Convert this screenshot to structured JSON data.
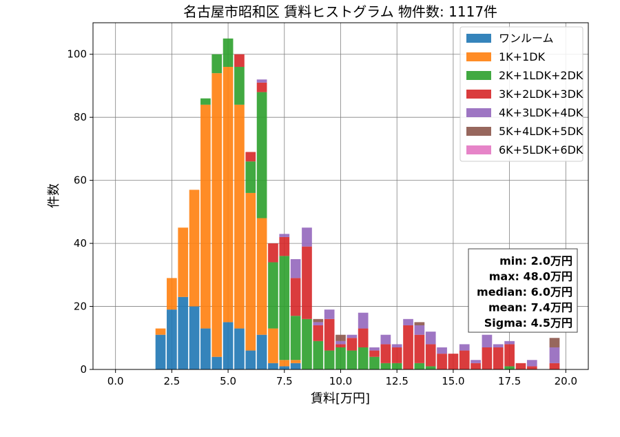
{
  "chart_data": {
    "type": "bar",
    "stacked": true,
    "title": "名古屋市昭和区 賃料ヒストグラム 物件数: 1117件",
    "xlabel": "賃料[万円]",
    "ylabel": "件数",
    "xlim": [
      -1.0,
      21.0
    ],
    "ylim": [
      0,
      110
    ],
    "bin_width": 0.5,
    "grid": true,
    "legend_position": "top-right",
    "x_ticks": [
      "0.0",
      "2.5",
      "5.0",
      "7.5",
      "10.0",
      "12.5",
      "15.0",
      "17.5",
      "20.0"
    ],
    "y_ticks": [
      "0",
      "20",
      "40",
      "60",
      "80",
      "100"
    ],
    "x": [
      2.0,
      2.5,
      3.0,
      3.5,
      4.0,
      4.5,
      5.0,
      5.5,
      6.0,
      6.5,
      7.0,
      7.5,
      8.0,
      8.5,
      9.0,
      9.5,
      10.0,
      10.5,
      11.0,
      11.5,
      12.0,
      12.5,
      13.0,
      13.5,
      14.0,
      14.5,
      15.0,
      15.5,
      16.0,
      16.5,
      17.0,
      17.5,
      18.0,
      18.5,
      19.0,
      19.5
    ],
    "series": [
      {
        "name": "ワンルーム",
        "color": "#1f77b4",
        "values": [
          11,
          19,
          23,
          20,
          13,
          4,
          15,
          13,
          6,
          11,
          2,
          1,
          2,
          0,
          0,
          0,
          0,
          0,
          0,
          0,
          0,
          0,
          0,
          0,
          0,
          0,
          0,
          0,
          0,
          0,
          0,
          0,
          0,
          0,
          0,
          0
        ]
      },
      {
        "name": "1K+1DK",
        "color": "#ff7f0e",
        "values": [
          2,
          10,
          22,
          37,
          71,
          90,
          81,
          71,
          50,
          37,
          11,
          2,
          1,
          0,
          0,
          0,
          0,
          0,
          0,
          0,
          0,
          0,
          0,
          0,
          0,
          0,
          0,
          0,
          0,
          0,
          0,
          0,
          0,
          0,
          0,
          0
        ]
      },
      {
        "name": "2K+1LDK+2DK",
        "color": "#2ca02c",
        "values": [
          0,
          0,
          0,
          0,
          2,
          6,
          9,
          12,
          10,
          40,
          21,
          33,
          14,
          16,
          9,
          6,
          7,
          6,
          7,
          4,
          2,
          2,
          0,
          2,
          1,
          0,
          0,
          0,
          0,
          0,
          0,
          1,
          0,
          0,
          0,
          0
        ]
      },
      {
        "name": "3K+2LDK+3DK",
        "color": "#d62728",
        "values": [
          0,
          0,
          0,
          0,
          0,
          0,
          0,
          4,
          3,
          3,
          6,
          6,
          12,
          23,
          5,
          10,
          1,
          4,
          6,
          2,
          6,
          5,
          14,
          9,
          7,
          5,
          5,
          6,
          2,
          7,
          7,
          7,
          2,
          1,
          0,
          2
        ]
      },
      {
        "name": "4K+3LDK+4DK",
        "color": "#9467bd",
        "values": [
          0,
          0,
          0,
          0,
          0,
          0,
          0,
          0,
          0,
          1,
          0,
          1,
          6,
          6,
          1,
          3,
          1,
          1,
          5,
          1,
          3,
          1,
          2,
          3,
          4,
          2,
          0,
          2,
          1,
          4,
          1,
          1,
          0,
          2,
          0,
          5
        ]
      },
      {
        "name": "5K+4LDK+5DK",
        "color": "#8c564b",
        "values": [
          0,
          0,
          0,
          0,
          0,
          0,
          0,
          0,
          0,
          0,
          0,
          0,
          0,
          0,
          1,
          0,
          2,
          0,
          0,
          0,
          0,
          0,
          0,
          1,
          0,
          0,
          0,
          0,
          0,
          0,
          0,
          0,
          0,
          0,
          0,
          3
        ]
      },
      {
        "name": "6K+5LDK+6DK",
        "color": "#e377c2",
        "values": [
          0,
          0,
          0,
          0,
          0,
          0,
          0,
          0,
          0,
          0,
          0,
          0,
          0,
          0,
          0,
          0,
          0,
          0,
          0,
          0,
          0,
          0,
          0,
          0,
          0,
          0,
          0,
          0,
          0,
          0,
          0,
          0,
          0,
          0,
          0,
          0
        ]
      }
    ],
    "stats": [
      "min: 2.0万円",
      "max: 48.0万円",
      "median: 6.0万円",
      "mean: 7.4万円",
      "Sigma: 4.5万円"
    ]
  }
}
